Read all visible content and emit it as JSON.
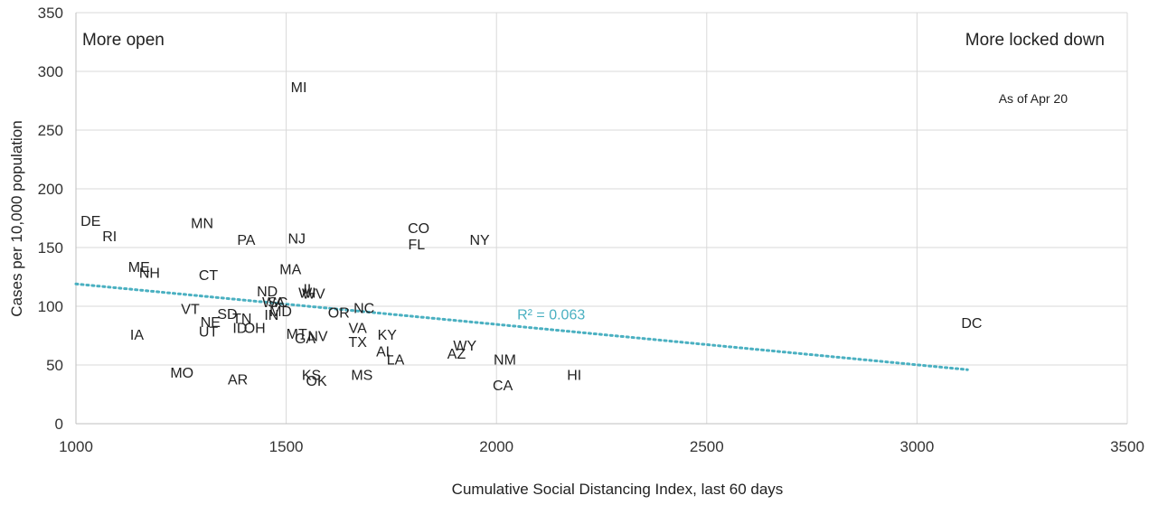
{
  "chart_data": {
    "type": "scatter",
    "xlabel": "Cumulative Social Distancing Index, last 60 days",
    "ylabel": "Cases per 10,000 population",
    "xlim": [
      1000,
      3500
    ],
    "ylim": [
      0,
      350
    ],
    "xticks": [
      1000,
      1500,
      2000,
      2500,
      3000,
      3500
    ],
    "yticks": [
      0,
      50,
      100,
      150,
      200,
      250,
      300,
      350
    ],
    "grid": true,
    "annotations": {
      "left": "More open",
      "right": "More locked down",
      "date": "As of Apr 20"
    },
    "trendline": {
      "label": "R² = 0.063",
      "x0": 1000,
      "y0": 119,
      "x1": 3120,
      "y1": 46,
      "color": "#4ab0c1"
    },
    "points": [
      {
        "label": "DE",
        "x": 1035,
        "y": 173
      },
      {
        "label": "RI",
        "x": 1080,
        "y": 160
      },
      {
        "label": "MN",
        "x": 1300,
        "y": 171
      },
      {
        "label": "PA",
        "x": 1405,
        "y": 157
      },
      {
        "label": "NJ",
        "x": 1525,
        "y": 158
      },
      {
        "label": "MI",
        "x": 1530,
        "y": 287
      },
      {
        "label": "CO",
        "x": 1815,
        "y": 167
      },
      {
        "label": "FL",
        "x": 1810,
        "y": 153
      },
      {
        "label": "NY",
        "x": 1960,
        "y": 157
      },
      {
        "label": "ME",
        "x": 1150,
        "y": 134
      },
      {
        "label": "NH",
        "x": 1175,
        "y": 129
      },
      {
        "label": "CT",
        "x": 1315,
        "y": 127
      },
      {
        "label": "MA",
        "x": 1510,
        "y": 132
      },
      {
        "label": "ND",
        "x": 1455,
        "y": 113
      },
      {
        "label": "IL",
        "x": 1555,
        "y": 115
      },
      {
        "label": "WI",
        "x": 1550,
        "y": 112
      },
      {
        "label": "WV",
        "x": 1565,
        "y": 111
      },
      {
        "label": "WA",
        "x": 1470,
        "y": 104
      },
      {
        "label": "SC",
        "x": 1480,
        "y": 104
      },
      {
        "label": "MO",
        "x": 1252,
        "y": 44
      },
      {
        "label": "AR",
        "x": 1385,
        "y": 38
      },
      {
        "label": "VT",
        "x": 1272,
        "y": 98
      },
      {
        "label": "NE",
        "x": 1320,
        "y": 87
      },
      {
        "label": "SD",
        "x": 1360,
        "y": 94
      },
      {
        "label": "TN",
        "x": 1395,
        "y": 90
      },
      {
        "label": "ID",
        "x": 1390,
        "y": 82
      },
      {
        "label": "OH",
        "x": 1425,
        "y": 82
      },
      {
        "label": "IN",
        "x": 1465,
        "y": 93
      },
      {
        "label": "MD",
        "x": 1487,
        "y": 96
      },
      {
        "label": "IA",
        "x": 1145,
        "y": 76
      },
      {
        "label": "UT",
        "x": 1315,
        "y": 79
      },
      {
        "label": "MT",
        "x": 1525,
        "y": 77
      },
      {
        "label": "GA",
        "x": 1545,
        "y": 73
      },
      {
        "label": "NV",
        "x": 1575,
        "y": 75
      },
      {
        "label": "OR",
        "x": 1625,
        "y": 95
      },
      {
        "label": "NC",
        "x": 1685,
        "y": 99
      },
      {
        "label": "VA",
        "x": 1670,
        "y": 82
      },
      {
        "label": "TX",
        "x": 1670,
        "y": 70
      },
      {
        "label": "KY",
        "x": 1740,
        "y": 76
      },
      {
        "label": "AL",
        "x": 1735,
        "y": 62
      },
      {
        "label": "LA",
        "x": 1760,
        "y": 55
      },
      {
        "label": "KS",
        "x": 1560,
        "y": 42
      },
      {
        "label": "OK",
        "x": 1572,
        "y": 37
      },
      {
        "label": "MS",
        "x": 1680,
        "y": 42
      },
      {
        "label": "AZ",
        "x": 1905,
        "y": 60
      },
      {
        "label": "WY",
        "x": 1925,
        "y": 67
      },
      {
        "label": "NM",
        "x": 2020,
        "y": 55
      },
      {
        "label": "CA",
        "x": 2015,
        "y": 33
      },
      {
        "label": "HI",
        "x": 2185,
        "y": 42
      },
      {
        "label": "DC",
        "x": 3130,
        "y": 86
      }
    ]
  }
}
